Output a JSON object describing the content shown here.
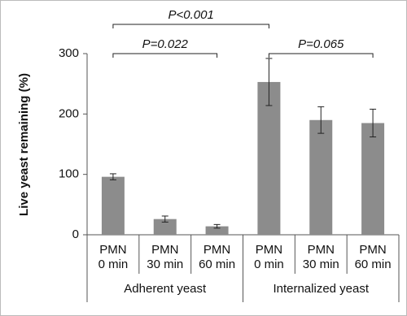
{
  "chart_data": {
    "type": "bar",
    "y_label": "Live yeast remaining (%)",
    "categories": [
      [
        "PMN",
        "0 min"
      ],
      [
        "PMN",
        "30 min"
      ],
      [
        "PMN",
        "60 min"
      ],
      [
        "PMN",
        "0 min"
      ],
      [
        "PMN",
        "30 min"
      ],
      [
        "PMN",
        "60 min"
      ]
    ],
    "values": [
      96,
      26,
      14,
      253,
      190,
      185
    ],
    "errors": [
      5,
      5,
      3,
      39,
      22,
      23
    ],
    "color": "#8c8c8c",
    "groups": [
      "Adherent yeast",
      "Internalized yeast"
    ],
    "annotations": [
      "P<0.001",
      "P=0.022",
      "P=0.065"
    ],
    "ylim": [
      0,
      300
    ],
    "yticks": [
      0,
      100,
      200,
      300
    ],
    "grid": false
  }
}
